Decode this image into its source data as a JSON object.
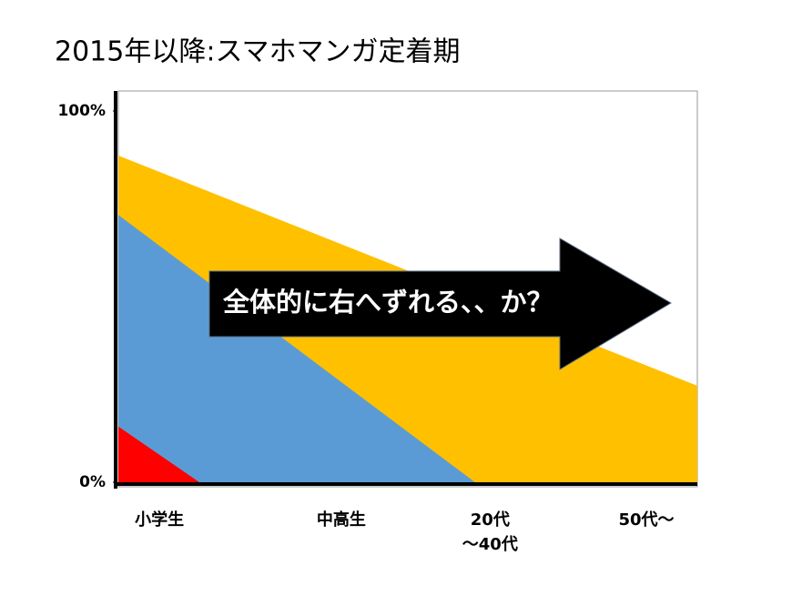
{
  "chart_data": {
    "type": "area",
    "title": "2015年以降:スマホマンガ定着期",
    "annotation": "全体的に右へずれる、、か？",
    "xlim": [
      0,
      100
    ],
    "ylim": [
      0,
      100
    ],
    "xticks": [
      {
        "value": 7.1,
        "label": "小学生"
      },
      {
        "value": 38.5,
        "label": "中高生"
      },
      {
        "value": 64.2,
        "label": "20代\n～40代"
      },
      {
        "value": 91.2,
        "label": "50代～"
      }
    ],
    "yticks": [
      {
        "value": 0,
        "label": "0%"
      },
      {
        "value": 100,
        "label": "100%"
      }
    ],
    "series": [
      {
        "color": "#ffc000",
        "x": [
          0,
          100
        ],
        "values": [
          88,
          26
        ]
      },
      {
        "color": "#5b9bd5",
        "x": [
          0,
          61.6
        ],
        "values": [
          72,
          0
        ]
      },
      {
        "color": "#ff0000",
        "x": [
          0,
          14
        ],
        "values": [
          15,
          0
        ]
      }
    ]
  }
}
